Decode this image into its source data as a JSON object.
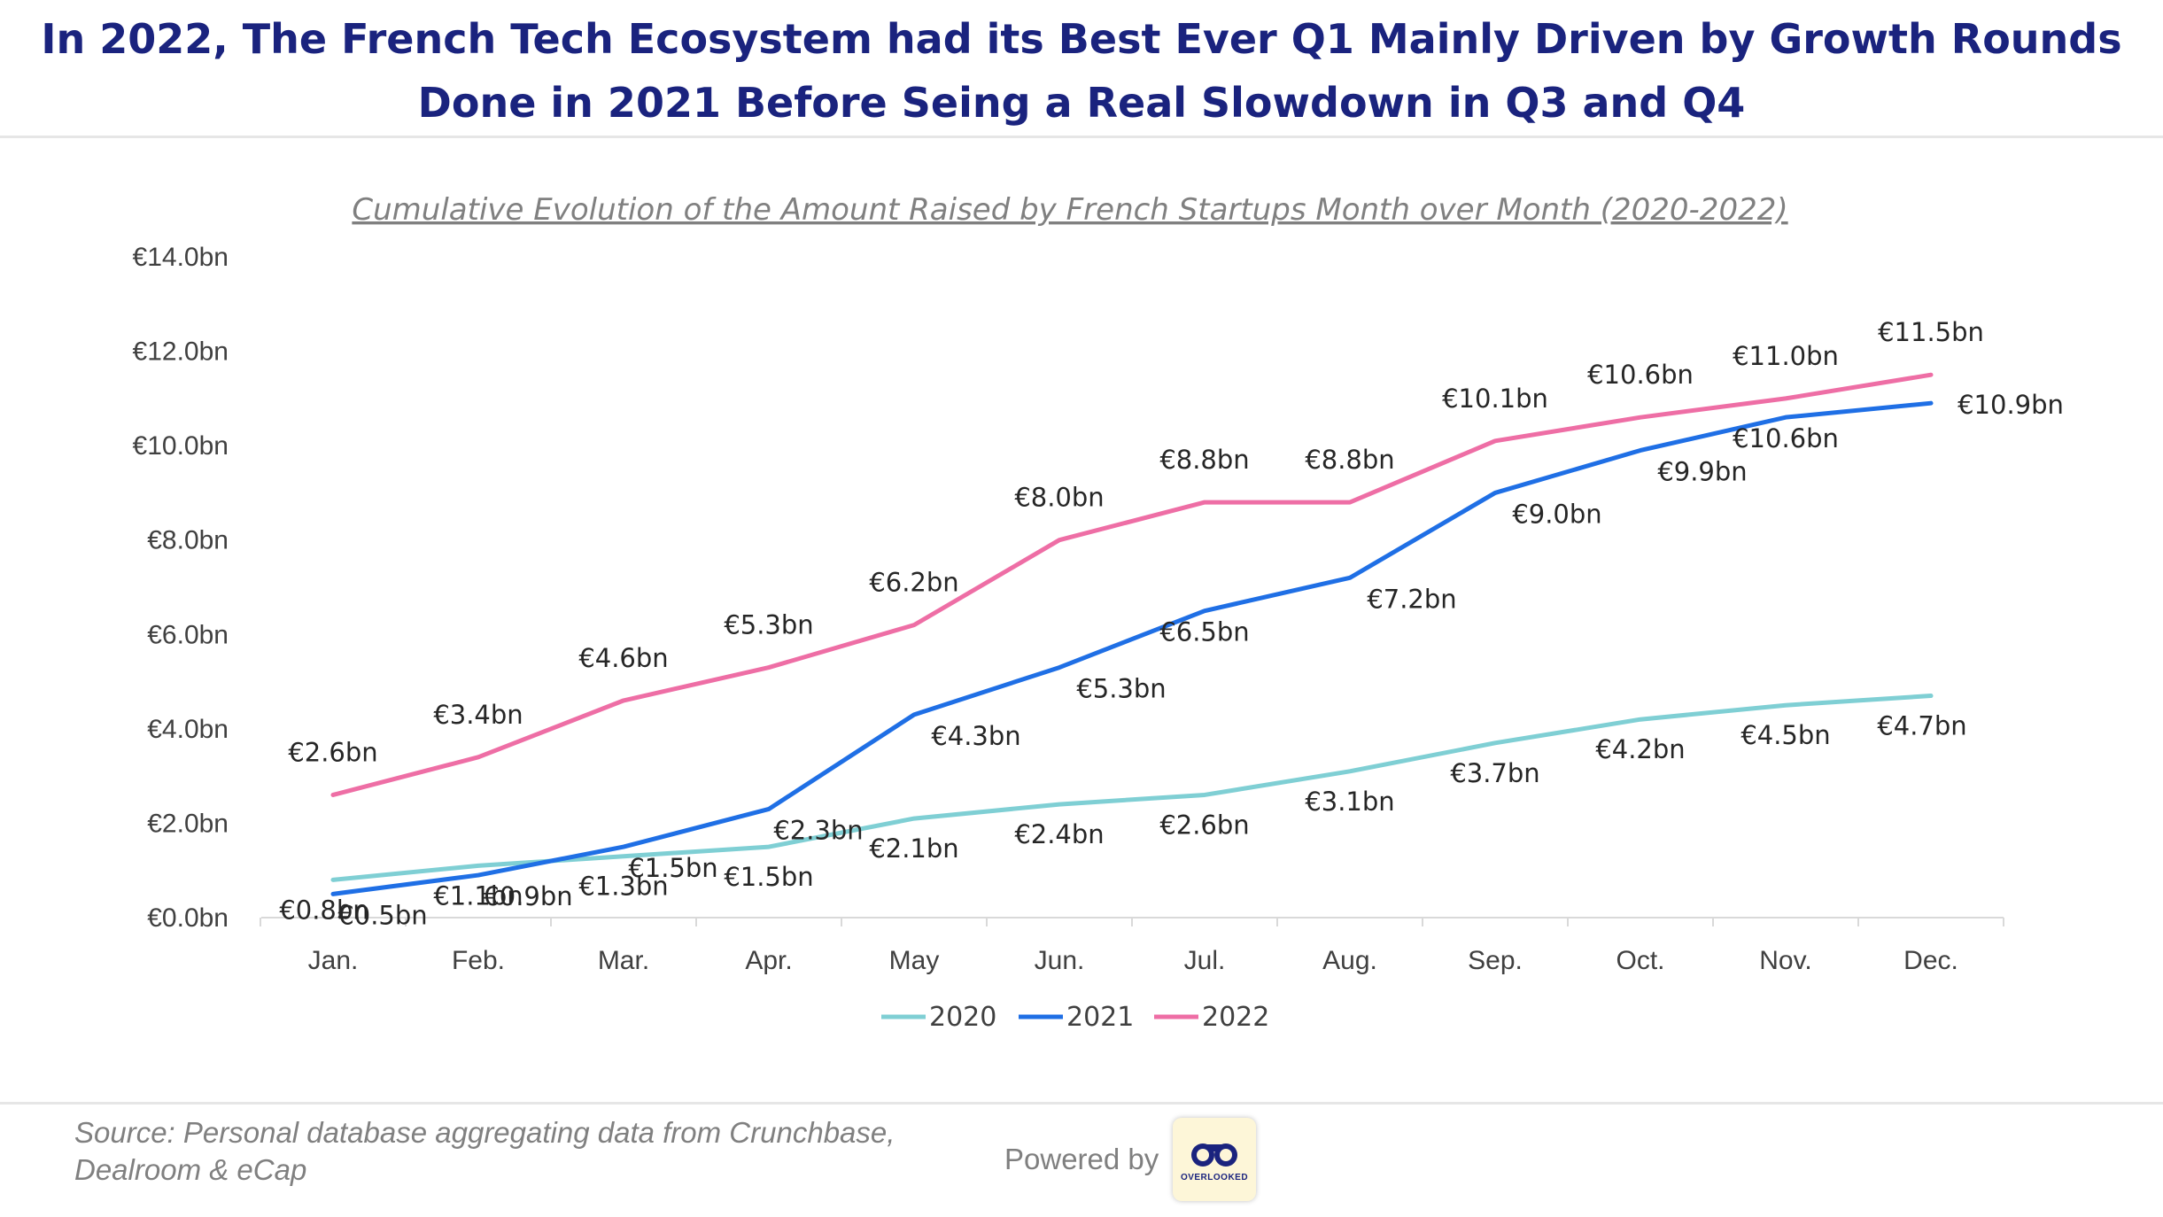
{
  "headline": {
    "line1": "In 2022, The French Tech Ecosystem had its Best Ever Q1 Mainly Driven by Growth Rounds",
    "line2": "Done in 2021 Before Seing a Real Slowdown in Q3 and Q4"
  },
  "chart_data": {
    "type": "line",
    "title": "Cumulative Evolution of the Amount Raised by French Startups Month over Month (2020-2022)",
    "xlabel": "",
    "ylabel": "",
    "categories": [
      "Jan.",
      "Feb.",
      "Mar.",
      "Apr.",
      "May",
      "Jun.",
      "Jul.",
      "Aug.",
      "Sep.",
      "Oct.",
      "Nov.",
      "Dec."
    ],
    "ylim": [
      0,
      14
    ],
    "yticks": [
      "€0.0bn",
      "€2.0bn",
      "€4.0bn",
      "€6.0bn",
      "€8.0bn",
      "€10.0bn",
      "€12.0bn",
      "€14.0bn"
    ],
    "grid": false,
    "legend_position": "bottom",
    "series": [
      {
        "name": "2020",
        "color": "#7fcfd4",
        "values": [
          0.8,
          1.1,
          1.3,
          1.5,
          2.1,
          2.4,
          2.6,
          3.1,
          3.7,
          4.2,
          4.5,
          4.7
        ],
        "labels": [
          "€0.8bn",
          "€1.1bn",
          "€1.3bn",
          "€1.5bn",
          "€2.1bn",
          "€2.4bn",
          "€2.6bn",
          "€3.1bn",
          "€3.7bn",
          "€4.2bn",
          "€4.5bn",
          "€4.7bn"
        ]
      },
      {
        "name": "2021",
        "color": "#1f6fe5",
        "values": [
          0.5,
          0.9,
          1.5,
          2.3,
          4.3,
          5.3,
          6.5,
          7.2,
          9.0,
          9.9,
          10.6,
          10.9
        ],
        "labels": [
          "€0.5bn",
          "€0.9bn",
          "€1.5bn",
          "€2.3bn",
          "€4.3bn",
          "€5.3bn",
          "€6.5bn",
          "€7.2bn",
          "€9.0bn",
          "€9.9bn",
          "€10.6bn",
          "€10.9bn"
        ]
      },
      {
        "name": "2022",
        "color": "#ee6ea5",
        "values": [
          2.6,
          3.4,
          4.6,
          5.3,
          6.2,
          8.0,
          8.8,
          8.8,
          10.1,
          10.6,
          11.0,
          11.5
        ],
        "labels": [
          "€2.6bn",
          "€3.4bn",
          "€4.6bn",
          "€5.3bn",
          "€6.2bn",
          "€8.0bn",
          "€8.8bn",
          "€8.8bn",
          "€10.1bn",
          "€10.6bn",
          "€11.0bn",
          "€11.5bn"
        ]
      }
    ]
  },
  "footer": {
    "source_line1": "Source: Personal database aggregating data from Crunchbase,",
    "source_line2": "Dealroom & eCap",
    "powered_by": "Powered by",
    "logo_text": "OVERLOOKED",
    "logo_icon": "binoculars-icon"
  }
}
